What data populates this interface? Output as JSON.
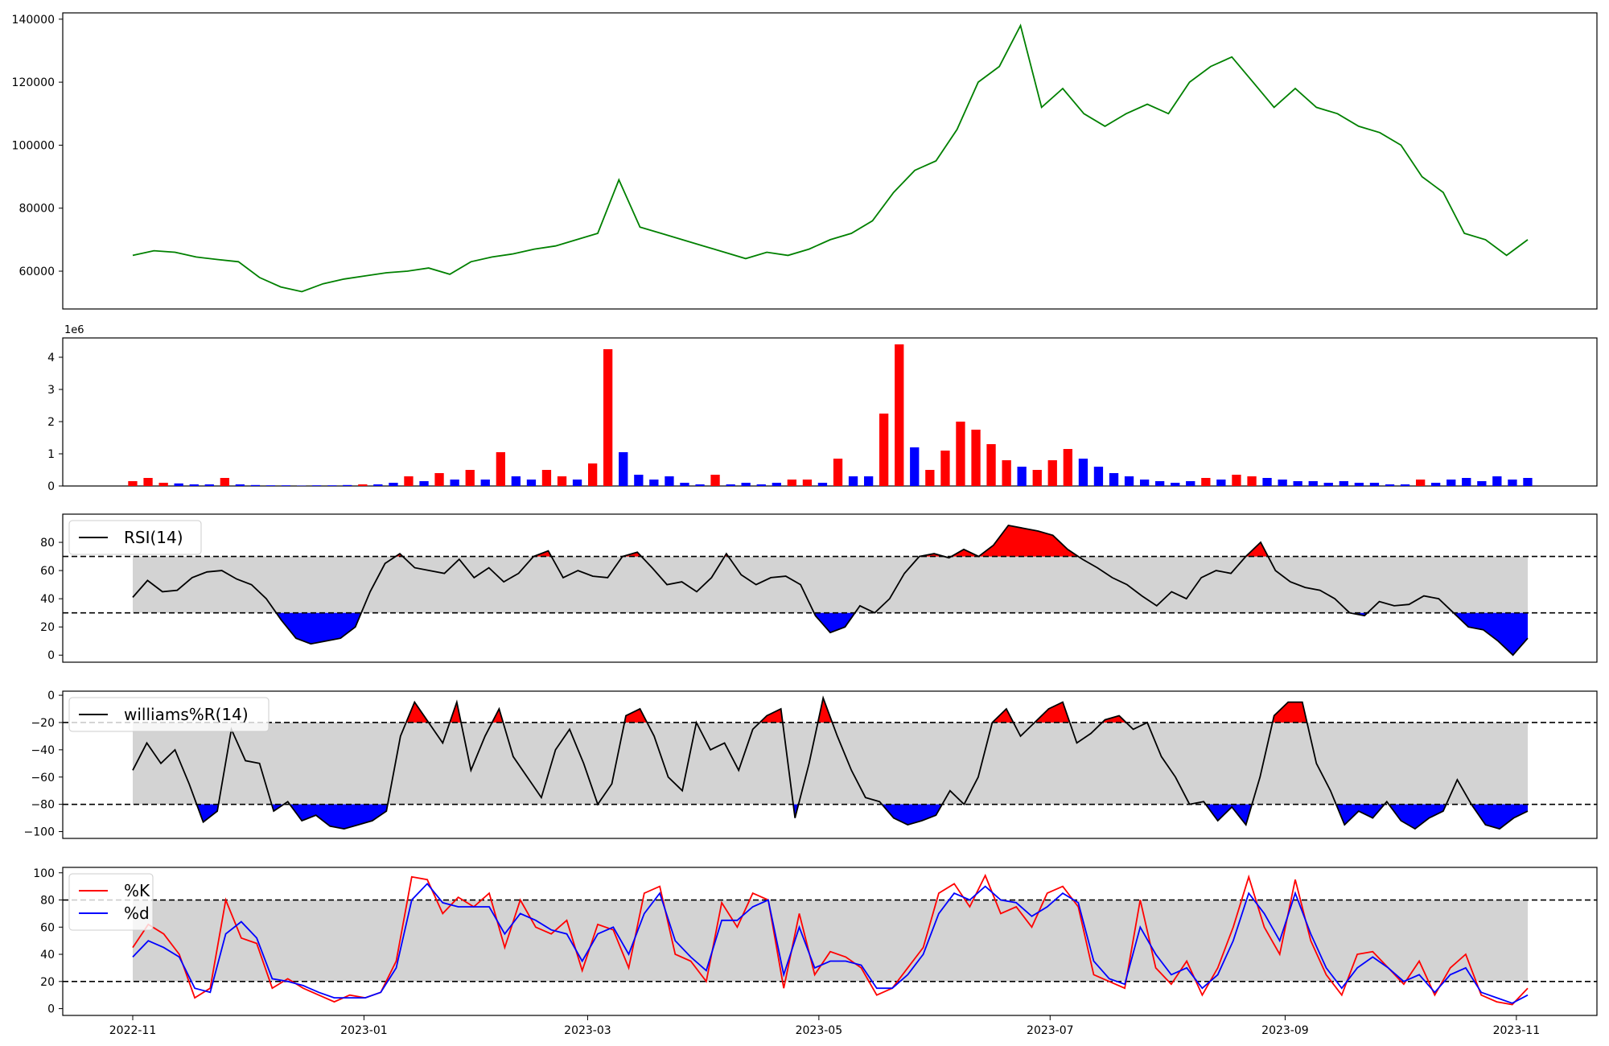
{
  "colors": {
    "price": "#008000",
    "up": "#ff0000",
    "down": "#0000ff",
    "band": "#d3d3d3",
    "line": "#000000"
  },
  "chart_data": [
    {
      "type": "line",
      "panel": "price",
      "series": [
        {
          "values": [
            65000,
            66500,
            66000,
            64500,
            63700,
            63000,
            58000,
            55000,
            53500,
            56000,
            57500,
            58500,
            59500,
            60000,
            61000,
            59000,
            63000,
            64500,
            65500,
            67000,
            68000,
            70000,
            72000,
            89000,
            74000,
            72000,
            70000,
            68000,
            66000,
            64000,
            66000,
            65000,
            67000,
            70000,
            72000,
            76000,
            85000,
            92000,
            95000,
            105000,
            120000,
            125000,
            138000,
            112000,
            118000,
            110000,
            106000,
            110000,
            113000,
            110000,
            120000,
            125000,
            128000,
            120000,
            112000,
            118000,
            112000,
            110000,
            106000,
            104000,
            100000,
            90000,
            85000,
            72000,
            70000,
            65000,
            70000
          ]
        }
      ],
      "x_range": [
        "2022-11-01",
        "2023-11-04"
      ],
      "yticks": [
        60000,
        80000,
        100000,
        120000,
        140000
      ],
      "ylim": [
        48000,
        142000
      ]
    },
    {
      "type": "bar",
      "panel": "volume",
      "offset_label": "1e6",
      "values": [
        0.15,
        0.25,
        0.1,
        0.08,
        0.05,
        0.05,
        0.25,
        0.05,
        0.03,
        0.02,
        0.02,
        0.01,
        0.02,
        0.02,
        0.03,
        0.05,
        0.05,
        0.1,
        0.3,
        0.15,
        0.4,
        0.2,
        0.5,
        0.2,
        1.05,
        0.3,
        0.2,
        0.5,
        0.3,
        0.2,
        0.7,
        4.25,
        1.05,
        0.35,
        0.2,
        0.3,
        0.1,
        0.05,
        0.35,
        0.05,
        0.1,
        0.05,
        0.1,
        0.2,
        0.2,
        0.1,
        0.85,
        0.3,
        0.3,
        2.25,
        4.4,
        1.2,
        0.5,
        1.1,
        2.0,
        1.75,
        1.3,
        0.8,
        0.6,
        0.5,
        0.8,
        1.15,
        0.85,
        0.6,
        0.4,
        0.3,
        0.2,
        0.15,
        0.1,
        0.15,
        0.25,
        0.2,
        0.35,
        0.3,
        0.25,
        0.2,
        0.15,
        0.15,
        0.1,
        0.15,
        0.1,
        0.1,
        0.05,
        0.05,
        0.2,
        0.1,
        0.2,
        0.25,
        0.15,
        0.3,
        0.2,
        0.25
      ],
      "up": [
        true,
        true,
        true,
        false,
        false,
        false,
        true,
        false,
        false,
        false,
        false,
        false,
        false,
        false,
        false,
        true,
        false,
        false,
        true,
        false,
        true,
        false,
        true,
        false,
        true,
        false,
        false,
        true,
        true,
        false,
        true,
        true,
        false,
        false,
        false,
        false,
        false,
        false,
        true,
        false,
        false,
        false,
        false,
        true,
        true,
        false,
        true,
        false,
        false,
        true,
        true,
        false,
        true,
        true,
        true,
        true,
        true,
        true,
        false,
        true,
        true,
        true,
        false,
        false,
        false,
        false,
        false,
        false,
        false,
        false,
        true,
        false,
        true,
        true,
        false,
        false,
        false,
        false,
        false,
        false,
        false,
        false,
        false,
        false,
        true,
        false,
        false,
        false,
        false,
        false,
        false,
        false
      ],
      "yticks": [
        0,
        1,
        2,
        3,
        4
      ],
      "ylim": [
        0,
        4.6
      ]
    },
    {
      "type": "line",
      "panel": "rsi",
      "legend": [
        "RSI(14)"
      ],
      "values": [
        41,
        53,
        45,
        46,
        55,
        59,
        60,
        54,
        50,
        40,
        25,
        12,
        8,
        10,
        12,
        20,
        45,
        65,
        72,
        62,
        60,
        58,
        68,
        55,
        62,
        52,
        58,
        70,
        74,
        55,
        60,
        56,
        55,
        70,
        73,
        62,
        50,
        52,
        45,
        55,
        72,
        57,
        50,
        55,
        56,
        50,
        28,
        16,
        20,
        35,
        30,
        40,
        58,
        70,
        72,
        69,
        75,
        70,
        78,
        92,
        90,
        88,
        85,
        75,
        68,
        62,
        55,
        50,
        42,
        35,
        45,
        40,
        55,
        60,
        58,
        70,
        80,
        60,
        52,
        48,
        46,
        40,
        30,
        28,
        38,
        35,
        36,
        42,
        40,
        30,
        20,
        18,
        10,
        0,
        12
      ],
      "thresholds": [
        30,
        70
      ],
      "yticks": [
        0,
        20,
        40,
        60,
        80
      ],
      "ylim": [
        -5,
        100
      ]
    },
    {
      "type": "line",
      "panel": "williams",
      "legend": [
        "williams%R(14)"
      ],
      "values": [
        -55,
        -35,
        -50,
        -40,
        -65,
        -93,
        -85,
        -25,
        -48,
        -50,
        -85,
        -78,
        -92,
        -88,
        -96,
        -98,
        -95,
        -92,
        -85,
        -30,
        -5,
        -20,
        -35,
        -5,
        -55,
        -30,
        -10,
        -45,
        -60,
        -75,
        -40,
        -25,
        -50,
        -80,
        -65,
        -15,
        -10,
        -30,
        -60,
        -70,
        -20,
        -40,
        -35,
        -55,
        -25,
        -15,
        -10,
        -90,
        -50,
        -2,
        -30,
        -55,
        -75,
        -78,
        -90,
        -95,
        -92,
        -88,
        -70,
        -80,
        -60,
        -20,
        -10,
        -30,
        -20,
        -10,
        -5,
        -35,
        -28,
        -18,
        -15,
        -25,
        -20,
        -45,
        -60,
        -80,
        -78,
        -92,
        -82,
        -95,
        -60,
        -15,
        -5,
        -5,
        -50,
        -70,
        -95,
        -85,
        -90,
        -78,
        -92,
        -98,
        -90,
        -85,
        -62,
        -80,
        -95,
        -98,
        -90,
        -85
      ],
      "thresholds": [
        -80,
        -20
      ],
      "yticks": [
        -100,
        -80,
        -60,
        -40,
        -20,
        0
      ],
      "ylim": [
        -105,
        3
      ]
    },
    {
      "type": "line",
      "panel": "stochastic",
      "series": [
        {
          "name": "%K",
          "values": [
            45,
            62,
            55,
            40,
            8,
            15,
            80,
            52,
            48,
            15,
            22,
            15,
            10,
            5,
            10,
            8,
            12,
            35,
            97,
            95,
            70,
            82,
            75,
            85,
            45,
            80,
            60,
            55,
            65,
            28,
            62,
            58,
            30,
            85,
            90,
            40,
            35,
            20,
            78,
            60,
            85,
            80,
            15,
            70,
            25,
            42,
            38,
            30,
            10,
            15,
            30,
            45,
            85,
            92,
            75,
            98,
            70,
            75,
            60,
            85,
            90,
            75,
            25,
            20,
            15,
            80,
            30,
            18,
            35,
            10,
            30,
            60,
            97,
            60,
            40,
            95,
            50,
            25,
            10,
            40,
            42,
            30,
            18,
            35,
            10,
            30,
            40,
            10,
            5,
            3,
            15
          ]
        },
        {
          "name": "%d",
          "values": [
            38,
            50,
            45,
            38,
            15,
            12,
            55,
            64,
            52,
            22,
            20,
            17,
            12,
            8,
            8,
            8,
            12,
            30,
            80,
            92,
            78,
            75,
            75,
            75,
            55,
            70,
            65,
            58,
            55,
            35,
            55,
            60,
            40,
            70,
            85,
            50,
            38,
            28,
            65,
            65,
            75,
            80,
            25,
            60,
            30,
            35,
            35,
            32,
            15,
            15,
            25,
            40,
            70,
            85,
            80,
            90,
            80,
            78,
            68,
            75,
            85,
            78,
            35,
            22,
            18,
            60,
            40,
            25,
            30,
            15,
            25,
            50,
            85,
            70,
            50,
            85,
            55,
            30,
            15,
            30,
            38,
            30,
            20,
            25,
            12,
            25,
            30,
            12,
            8,
            4,
            10
          ]
        }
      ],
      "thresholds": [
        20,
        80
      ],
      "yticks": [
        0,
        20,
        40,
        60,
        80,
        100
      ],
      "ylim": [
        -5,
        104
      ]
    }
  ],
  "x_axis": {
    "ticks": [
      "2022-11",
      "2023-01",
      "2023-03",
      "2023-05",
      "2023-07",
      "2023-09",
      "2023-11"
    ]
  }
}
